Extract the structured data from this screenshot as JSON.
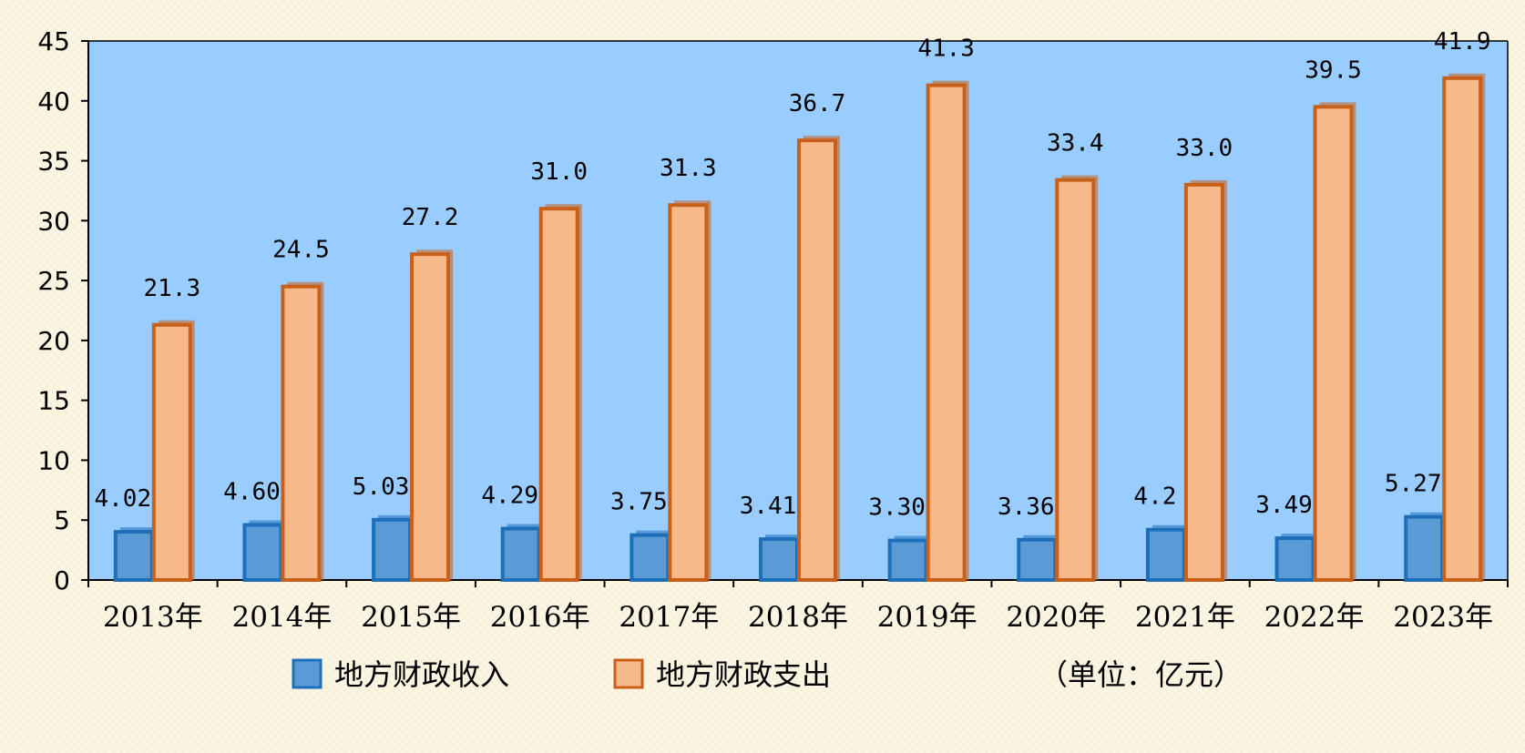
{
  "chart_data": {
    "type": "bar",
    "categories": [
      "2013年",
      "2014年",
      "2015年",
      "2016年",
      "2017年",
      "2018年",
      "2019年",
      "2020年",
      "2021年",
      "2022年",
      "2023年"
    ],
    "series": [
      {
        "name": "地方财政收入",
        "values": [
          4.02,
          4.6,
          5.03,
          4.29,
          3.75,
          3.41,
          3.3,
          3.36,
          4.2,
          3.49,
          5.27
        ],
        "labels": [
          "4.02",
          "4.60",
          "5.03",
          "4.29",
          "3.75",
          "3.41",
          "3.30",
          "3.36",
          "4.2",
          "3.49",
          "5.27"
        ],
        "color": "#5b9bd5",
        "edge_color": "#1e6fba"
      },
      {
        "name": "地方财政支出",
        "values": [
          21.3,
          24.5,
          27.2,
          31.0,
          31.3,
          36.7,
          41.3,
          33.4,
          33.0,
          39.5,
          41.9
        ],
        "labels": [
          "21.3",
          "24.5",
          "27.2",
          "31.0",
          "31.3",
          "36.7",
          "41.3",
          "33.4",
          "33.0",
          "39.5",
          "41.9"
        ],
        "color": "#f7b98a",
        "edge_color": "#c8601a"
      }
    ],
    "ylim": [
      0,
      45
    ],
    "yticks": [
      0,
      5,
      10,
      15,
      20,
      25,
      30,
      35,
      40,
      45
    ],
    "unit_note": "（单位：亿元）",
    "plot_background": "#99ccff",
    "grid": false,
    "legend_position": "bottom"
  }
}
